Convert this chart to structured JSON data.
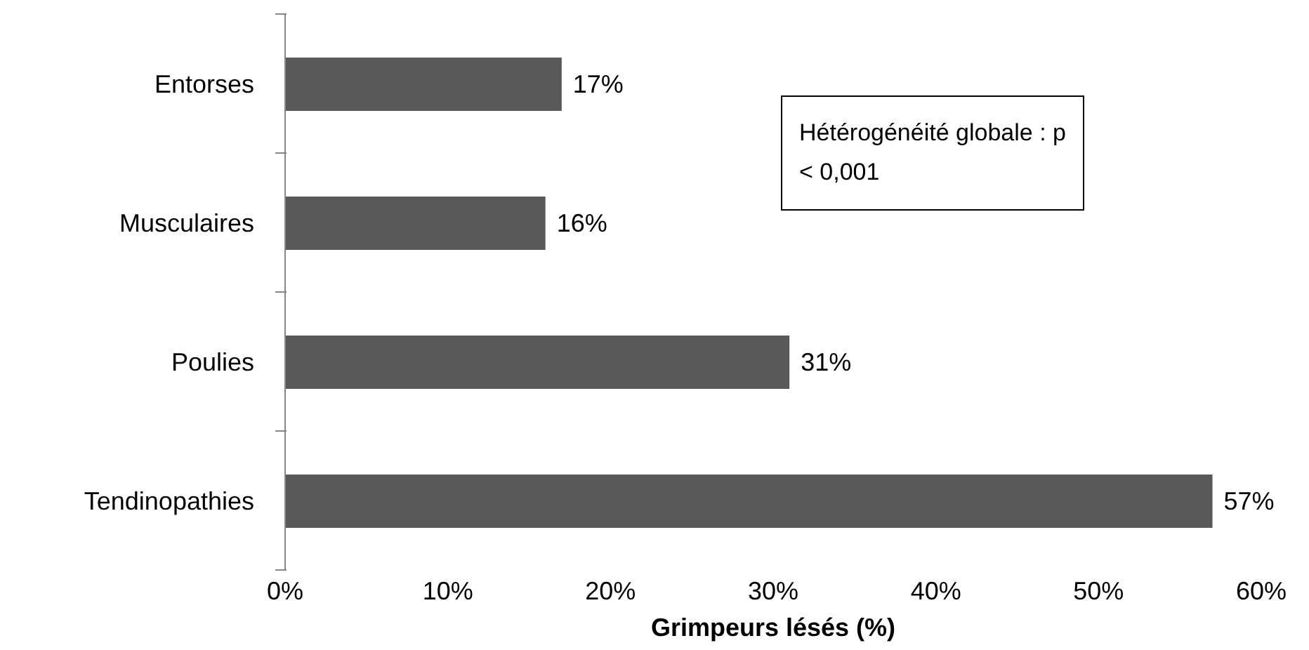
{
  "chart_data": {
    "type": "bar",
    "orientation": "horizontal",
    "xlabel": "Grimpeurs lésés (%)",
    "categories": [
      "Entorses",
      "Musculaires",
      "Poulies",
      "Tendinopathies"
    ],
    "values": [
      17,
      16,
      31,
      57
    ],
    "color": "#595959",
    "value_labels": [
      "17%",
      "16%",
      "31%",
      "57%"
    ],
    "xlim": [
      0,
      60
    ],
    "xticks": [
      {
        "value": 0,
        "label": "0%"
      },
      {
        "value": 10,
        "label": "10%"
      },
      {
        "value": 20,
        "label": "20%"
      },
      {
        "value": 30,
        "label": "30%"
      },
      {
        "value": 40,
        "label": "40%"
      },
      {
        "value": 50,
        "label": "50%"
      },
      {
        "value": 60,
        "label": "60%"
      }
    ],
    "grid": false,
    "legend": false,
    "annotations": [
      "Hétérogénéité globale : p < 0,001"
    ]
  }
}
